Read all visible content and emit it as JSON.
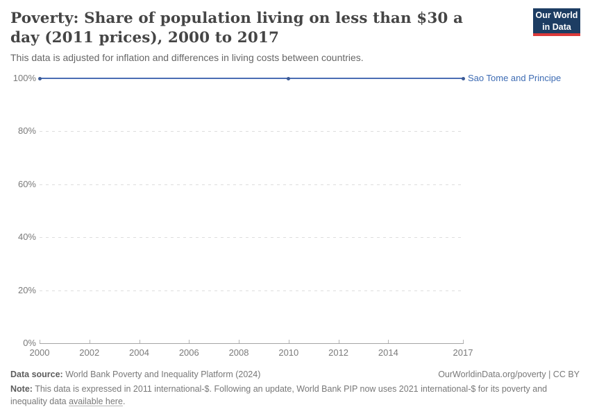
{
  "header": {
    "title": "Poverty: Share of population living on less than $30 a day (2011 prices), 2000 to 2017",
    "subtitle": "This data is adjusted for inflation and differences in living costs between countries.",
    "logo": {
      "line1": "Our World",
      "line2": "in Data",
      "bg_color": "#1d3d63",
      "accent_color": "#dc3a3a"
    }
  },
  "chart_data": {
    "type": "line",
    "title": "Poverty: Share of population living on less than $30 a day (2011 prices), 2000 to 2017",
    "xlabel": "",
    "ylabel": "",
    "xlim": [
      2000,
      2017
    ],
    "ylim": [
      0,
      100
    ],
    "x_ticks": [
      2000,
      2002,
      2004,
      2006,
      2008,
      2010,
      2012,
      2014,
      2017
    ],
    "y_ticks": [
      0,
      20,
      40,
      60,
      80,
      100
    ],
    "y_tick_suffix": "%",
    "grid": "horizontal-dashed",
    "legend_position": "inline-end-of-line",
    "series": [
      {
        "name": "Sao Tome and Principe",
        "color": "#4a6db3",
        "marker_color": "#3b5a96",
        "label_color": "#3d6bb3",
        "x": [
          2000,
          2010,
          2017
        ],
        "values": [
          100,
          100,
          100
        ]
      }
    ]
  },
  "footer": {
    "source_label": "Data source:",
    "source_text": " World Bank Poverty and Inequality Platform (2024)",
    "attribution": "OurWorldinData.org/poverty | CC BY",
    "note_label": "Note:",
    "note_before_link": " This data is expressed in 2011 international-$. Following an update, World Bank PIP now uses 2021 international-$ for its poverty and inequality data ",
    "note_link": "available here",
    "note_after_link": "."
  }
}
